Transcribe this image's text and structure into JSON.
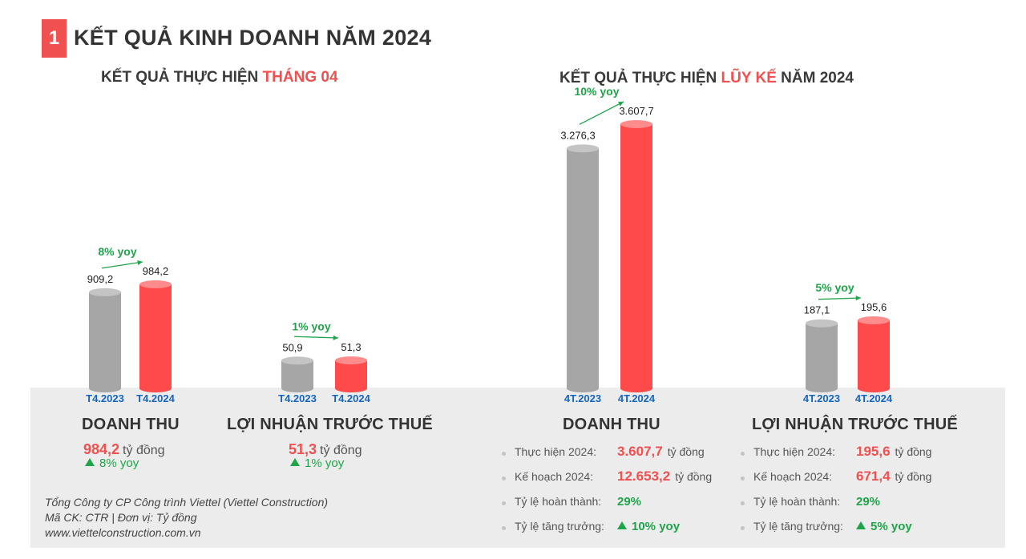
{
  "header": {
    "number": "1",
    "title": "KẾT QUẢ KINH DOANH NĂM 2024"
  },
  "left_title": {
    "prefix": "KẾT QUẢ THỰC HIỆN ",
    "highlight": "THÁNG 04",
    "suffix": ""
  },
  "right_title": {
    "prefix": "KẾT QUẢ THỰC HIỆN ",
    "highlight": "LŨY KẾ",
    "suffix": " NĂM 2024"
  },
  "colors": {
    "accent_red": "#f0504f",
    "bar_gray": "#a6a6a6",
    "bar_red": "#fe4a4a",
    "green": "#1ea54a",
    "label_blue": "#1565c0"
  },
  "chart_data": [
    {
      "type": "bar",
      "title": "DOANH THU",
      "categories": [
        "T4.2023",
        "T4.2024"
      ],
      "values": [
        909.2,
        984.2
      ],
      "value_labels": [
        "909,2",
        "984,2"
      ],
      "yoy": "8% yoy"
    },
    {
      "type": "bar",
      "title": "LỢI NHUẬN TRƯỚC THUẾ",
      "categories": [
        "T4.2023",
        "T4.2024"
      ],
      "values": [
        50.9,
        51.3
      ],
      "value_labels": [
        "50,9",
        "51,3"
      ],
      "yoy": "1% yoy"
    },
    {
      "type": "bar",
      "title": "DOANH THU",
      "categories": [
        "4T.2023",
        "4T.2024"
      ],
      "values": [
        3276.3,
        3607.7
      ],
      "value_labels": [
        "3.276,3",
        "3.607,7"
      ],
      "yoy": "10% yoy"
    },
    {
      "type": "bar",
      "title": "LỢI NHUẬN TRƯỚC THUẾ",
      "categories": [
        "4T.2023",
        "4T.2024"
      ],
      "values": [
        187.1,
        195.6
      ],
      "value_labels": [
        "187,1",
        "195,6"
      ],
      "yoy": "5% yoy"
    }
  ],
  "monthly": {
    "revenue": {
      "title": "DOANH THU",
      "value": "984,2",
      "unit": "tỷ đồng",
      "yoy": "8% yoy"
    },
    "profit": {
      "title": "LỢI NHUẬN TRƯỚC THUẾ",
      "value": "51,3",
      "unit": "tỷ đồng",
      "yoy": "1% yoy"
    }
  },
  "cumulative": {
    "revenue": {
      "title": "DOANH THU",
      "rows": [
        {
          "label": "Thực hiện 2024:",
          "value": "3.607,7",
          "unit": "tỷ đồng"
        },
        {
          "label": "Kế hoạch 2024:",
          "value": "12.653,2",
          "unit": "tỷ đồng"
        },
        {
          "label": "Tỷ lệ hoàn thành:",
          "value": "29%"
        },
        {
          "label": "Tỷ lệ tăng trưởng:",
          "value": "10% yoy"
        }
      ]
    },
    "profit": {
      "title": "LỢI NHUẬN TRƯỚC THUẾ",
      "rows": [
        {
          "label": "Thực hiện 2024:",
          "value": "195,6",
          "unit": "tỷ đồng"
        },
        {
          "label": "Kế hoạch 2024:",
          "value": "671,4",
          "unit": "tỷ đồng"
        },
        {
          "label": "Tỷ lệ hoàn thành:",
          "value": "29%"
        },
        {
          "label": "Tỷ lệ tăng trưởng:",
          "value": "5% yoy"
        }
      ]
    }
  },
  "footer": {
    "line1": "Tổng Công ty CP Công trình Viettel (Viettel Construction)",
    "line2": "Mã CK: CTR  |  Đơn vị: Tỷ đồng",
    "line3": "www.viettelconstruction.com.vn"
  }
}
